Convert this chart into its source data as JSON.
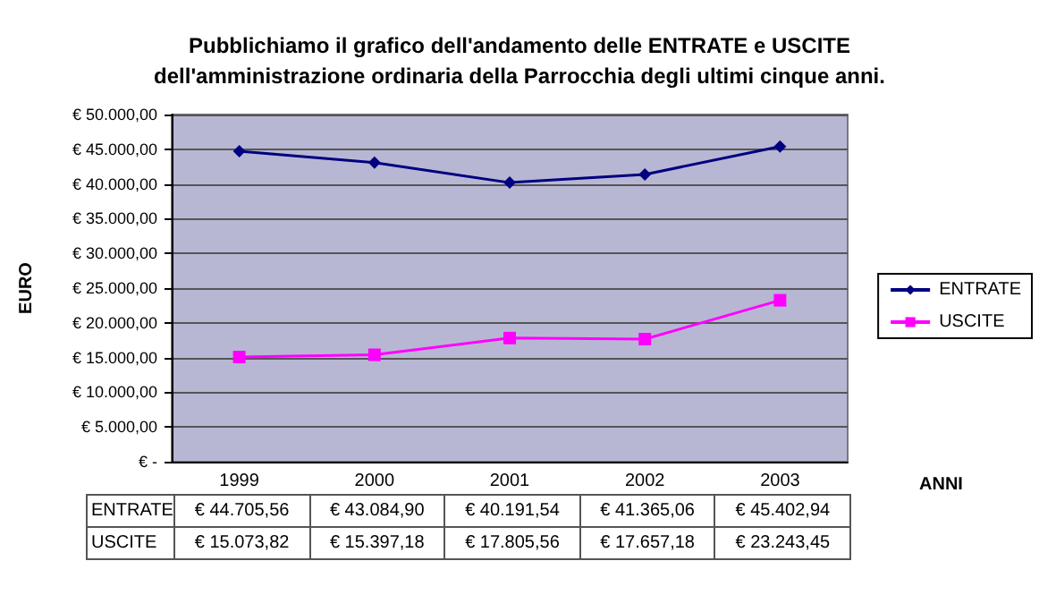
{
  "chart_data": {
    "type": "line",
    "title": "Pubblichiamo il grafico dell'andamento delle ENTRATE e USCITE\ndell'amministrazione ordinaria della Parrocchia degli ultimi cinque anni.",
    "xlabel": "ANNI",
    "ylabel": "EURO",
    "categories": [
      "1999",
      "2000",
      "2001",
      "2002",
      "2003"
    ],
    "series": [
      {
        "name": "ENTRATE",
        "color": "#000080",
        "marker": "diamond",
        "values": [
          44705.56,
          43084.9,
          40191.54,
          41365.06,
          45402.94
        ],
        "value_labels": [
          "€ 44.705,56",
          "€ 43.084,90",
          "€ 40.191,54",
          "€ 41.365,06",
          "€ 45.402,94"
        ]
      },
      {
        "name": "USCITE",
        "color": "#ff00ff",
        "marker": "square",
        "values": [
          15073.82,
          15397.18,
          17805.56,
          17657.18,
          23243.45
        ],
        "value_labels": [
          "€ 15.073,82",
          "€ 15.397,18",
          "€ 17.805,56",
          "€ 17.657,18",
          "€ 23.243,45"
        ]
      }
    ],
    "ylim": [
      0,
      50000
    ],
    "yticks": [
      {
        "value": 0,
        "label": "€ -"
      },
      {
        "value": 5000,
        "label": "€ 5.000,00"
      },
      {
        "value": 10000,
        "label": "€ 10.000,00"
      },
      {
        "value": 15000,
        "label": "€ 15.000,00"
      },
      {
        "value": 20000,
        "label": "€ 20.000,00"
      },
      {
        "value": 25000,
        "label": "€ 25.000,00"
      },
      {
        "value": 30000,
        "label": "€ 30.000,00"
      },
      {
        "value": 35000,
        "label": "€ 35.000,00"
      },
      {
        "value": 40000,
        "label": "€ 40.000,00"
      },
      {
        "value": 45000,
        "label": "€ 45.000,00"
      },
      {
        "value": 50000,
        "label": "€ 50.000,00"
      }
    ],
    "grid": "y",
    "legend": "right",
    "line_style": "solid"
  }
}
